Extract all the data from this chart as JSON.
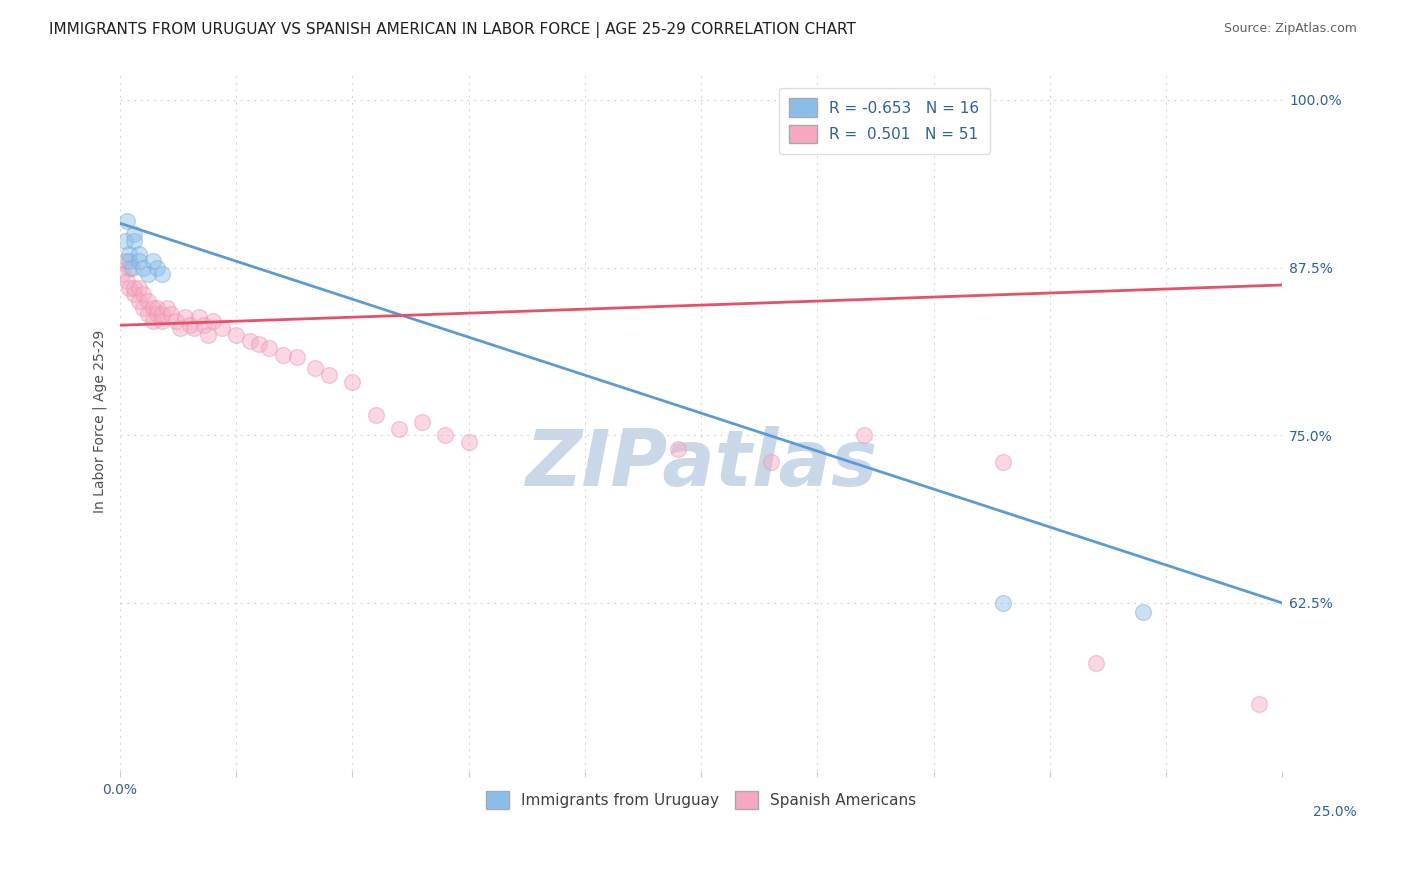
{
  "title": "IMMIGRANTS FROM URUGUAY VS SPANISH AMERICAN IN LABOR FORCE | AGE 25-29 CORRELATION CHART",
  "source": "Source: ZipAtlas.com",
  "right_axis_labels": [
    "100.0%",
    "87.5%",
    "75.0%",
    "62.5%"
  ],
  "ylabel_label": "In Labor Force | Age 25-29",
  "legend_entries": [
    {
      "label": "R = -0.653   N = 16",
      "color": "#a8c8e8"
    },
    {
      "label": "R =  0.501   N = 51",
      "color": "#f4a8c0"
    }
  ],
  "legend_bottom": [
    "Immigrants from Uruguay",
    "Spanish Americans"
  ],
  "blue_scatter_x": [
    0.001,
    0.0015,
    0.002,
    0.002,
    0.0025,
    0.003,
    0.003,
    0.004,
    0.004,
    0.005,
    0.006,
    0.007,
    0.008,
    0.009,
    0.19,
    0.22
  ],
  "blue_scatter_y": [
    0.895,
    0.91,
    0.885,
    0.88,
    0.875,
    0.9,
    0.895,
    0.885,
    0.88,
    0.875,
    0.87,
    0.88,
    0.875,
    0.87,
    0.625,
    0.618
  ],
  "pink_scatter_x": [
    0.0005,
    0.001,
    0.0015,
    0.002,
    0.002,
    0.003,
    0.003,
    0.004,
    0.004,
    0.005,
    0.005,
    0.006,
    0.006,
    0.007,
    0.007,
    0.008,
    0.008,
    0.009,
    0.009,
    0.01,
    0.011,
    0.012,
    0.013,
    0.014,
    0.015,
    0.016,
    0.017,
    0.018,
    0.019,
    0.02,
    0.022,
    0.025,
    0.028,
    0.03,
    0.032,
    0.035,
    0.038,
    0.042,
    0.045,
    0.05,
    0.055,
    0.06,
    0.065,
    0.07,
    0.075,
    0.12,
    0.14,
    0.16,
    0.19,
    0.21,
    0.245
  ],
  "pink_scatter_y": [
    0.87,
    0.88,
    0.865,
    0.86,
    0.875,
    0.855,
    0.86,
    0.85,
    0.86,
    0.845,
    0.855,
    0.84,
    0.85,
    0.845,
    0.835,
    0.84,
    0.845,
    0.835,
    0.84,
    0.845,
    0.84,
    0.835,
    0.83,
    0.838,
    0.832,
    0.83,
    0.838,
    0.832,
    0.825,
    0.835,
    0.83,
    0.825,
    0.82,
    0.818,
    0.815,
    0.81,
    0.808,
    0.8,
    0.795,
    0.79,
    0.765,
    0.755,
    0.76,
    0.75,
    0.745,
    0.74,
    0.73,
    0.75,
    0.73,
    0.58,
    0.55
  ],
  "blue_line_x": [
    0.0,
    0.25
  ],
  "blue_line_y": [
    0.908,
    0.625
  ],
  "pink_line_x": [
    0.0,
    0.25
  ],
  "pink_line_y": [
    0.832,
    0.862
  ],
  "xlim": [
    0.0,
    0.25
  ],
  "ylim": [
    0.5,
    1.02
  ],
  "yticks": [
    0.625,
    0.75,
    0.875,
    1.0
  ],
  "scatter_size": 130,
  "scatter_alpha": 0.45,
  "blue_color": "#8abde8",
  "pink_color": "#f5a8c0",
  "blue_edge_color": "#7aadd8",
  "pink_edge_color": "#e898b0",
  "blue_line_color": "#5b9bd5",
  "pink_line_color": "#e8506a",
  "background_color": "#ffffff",
  "grid_color": "#d8d8d8",
  "watermark": "ZIPatlas",
  "watermark_color": "#c8d8e8",
  "title_fontsize": 11,
  "axis_fontsize": 10,
  "legend_fontsize": 11
}
